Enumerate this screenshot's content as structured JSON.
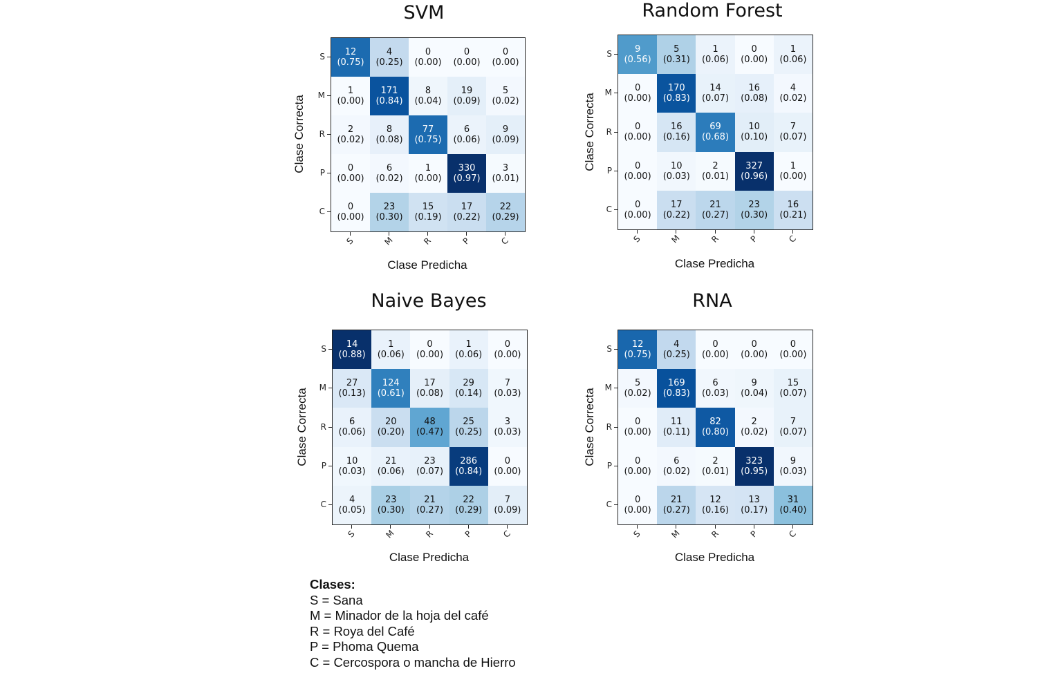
{
  "chart_data": [
    {
      "type": "heatmap",
      "title": "SVM",
      "xlabel": "Clase Predicha",
      "ylabel": "Clase Correcta",
      "x_tick_labels": [
        "S",
        "M",
        "R",
        "P",
        "C"
      ],
      "y_tick_labels": [
        "S",
        "M",
        "R",
        "P",
        "C"
      ],
      "colormap": "Blues",
      "counts": [
        [
          12,
          4,
          0,
          0,
          0
        ],
        [
          1,
          171,
          8,
          19,
          5
        ],
        [
          2,
          8,
          77,
          6,
          9
        ],
        [
          0,
          6,
          1,
          330,
          3
        ],
        [
          0,
          23,
          15,
          17,
          22
        ]
      ],
      "proportions": [
        [
          0.75,
          0.25,
          0.0,
          0.0,
          0.0
        ],
        [
          0.0,
          0.84,
          0.04,
          0.09,
          0.02
        ],
        [
          0.02,
          0.08,
          0.75,
          0.06,
          0.09
        ],
        [
          0.0,
          0.02,
          0.0,
          0.97,
          0.01
        ],
        [
          0.0,
          0.3,
          0.19,
          0.22,
          0.29
        ]
      ]
    },
    {
      "type": "heatmap",
      "title": "Random Forest",
      "xlabel": "Clase Predicha",
      "ylabel": "Clase Correcta",
      "x_tick_labels": [
        "S",
        "M",
        "R",
        "P",
        "C"
      ],
      "y_tick_labels": [
        "S",
        "M",
        "R",
        "P",
        "C"
      ],
      "colormap": "Blues",
      "counts": [
        [
          9,
          5,
          1,
          0,
          1
        ],
        [
          0,
          170,
          14,
          16,
          4
        ],
        [
          0,
          16,
          69,
          10,
          7
        ],
        [
          0,
          10,
          2,
          327,
          1
        ],
        [
          0,
          17,
          21,
          23,
          16
        ]
      ],
      "proportions": [
        [
          0.56,
          0.31,
          0.06,
          0.0,
          0.06
        ],
        [
          0.0,
          0.83,
          0.07,
          0.08,
          0.02
        ],
        [
          0.0,
          0.16,
          0.68,
          0.1,
          0.07
        ],
        [
          0.0,
          0.03,
          0.01,
          0.96,
          0.0
        ],
        [
          0.0,
          0.22,
          0.27,
          0.3,
          0.21
        ]
      ]
    },
    {
      "type": "heatmap",
      "title": "Naive Bayes",
      "xlabel": "Clase Predicha",
      "ylabel": "Clase Correcta",
      "x_tick_labels": [
        "S",
        "M",
        "R",
        "P",
        "C"
      ],
      "y_tick_labels": [
        "S",
        "M",
        "R",
        "P",
        "C"
      ],
      "colormap": "Blues",
      "counts": [
        [
          14,
          1,
          0,
          1,
          0
        ],
        [
          27,
          124,
          17,
          29,
          7
        ],
        [
          6,
          20,
          48,
          25,
          3
        ],
        [
          10,
          21,
          23,
          286,
          0
        ],
        [
          4,
          23,
          21,
          22,
          7
        ]
      ],
      "proportions": [
        [
          0.88,
          0.06,
          0.0,
          0.06,
          0.0
        ],
        [
          0.13,
          0.61,
          0.08,
          0.14,
          0.03
        ],
        [
          0.06,
          0.2,
          0.47,
          0.25,
          0.03
        ],
        [
          0.03,
          0.06,
          0.07,
          0.84,
          0.0
        ],
        [
          0.05,
          0.3,
          0.27,
          0.29,
          0.09
        ]
      ]
    },
    {
      "type": "heatmap",
      "title": "RNA",
      "xlabel": "Clase Predicha",
      "ylabel": "Clase Correcta",
      "x_tick_labels": [
        "S",
        "M",
        "R",
        "P",
        "C"
      ],
      "y_tick_labels": [
        "S",
        "M",
        "R",
        "P",
        "C"
      ],
      "colormap": "Blues",
      "counts": [
        [
          12,
          4,
          0,
          0,
          0
        ],
        [
          5,
          169,
          6,
          9,
          15
        ],
        [
          0,
          11,
          82,
          2,
          7
        ],
        [
          0,
          6,
          2,
          323,
          9
        ],
        [
          0,
          21,
          12,
          13,
          31
        ]
      ],
      "proportions": [
        [
          0.75,
          0.25,
          0.0,
          0.0,
          0.0
        ],
        [
          0.02,
          0.83,
          0.03,
          0.04,
          0.07
        ],
        [
          0.0,
          0.11,
          0.8,
          0.02,
          0.07
        ],
        [
          0.0,
          0.02,
          0.01,
          0.95,
          0.03
        ],
        [
          0.0,
          0.27,
          0.16,
          0.17,
          0.4
        ]
      ]
    }
  ],
  "legend": {
    "heading": "Clases:",
    "items": [
      "S = Sana",
      "M = Minador de la hoja del café",
      "R = Roya del Café",
      "P = Phoma Quema",
      "C = Cercospora o mancha de Hierro"
    ]
  }
}
